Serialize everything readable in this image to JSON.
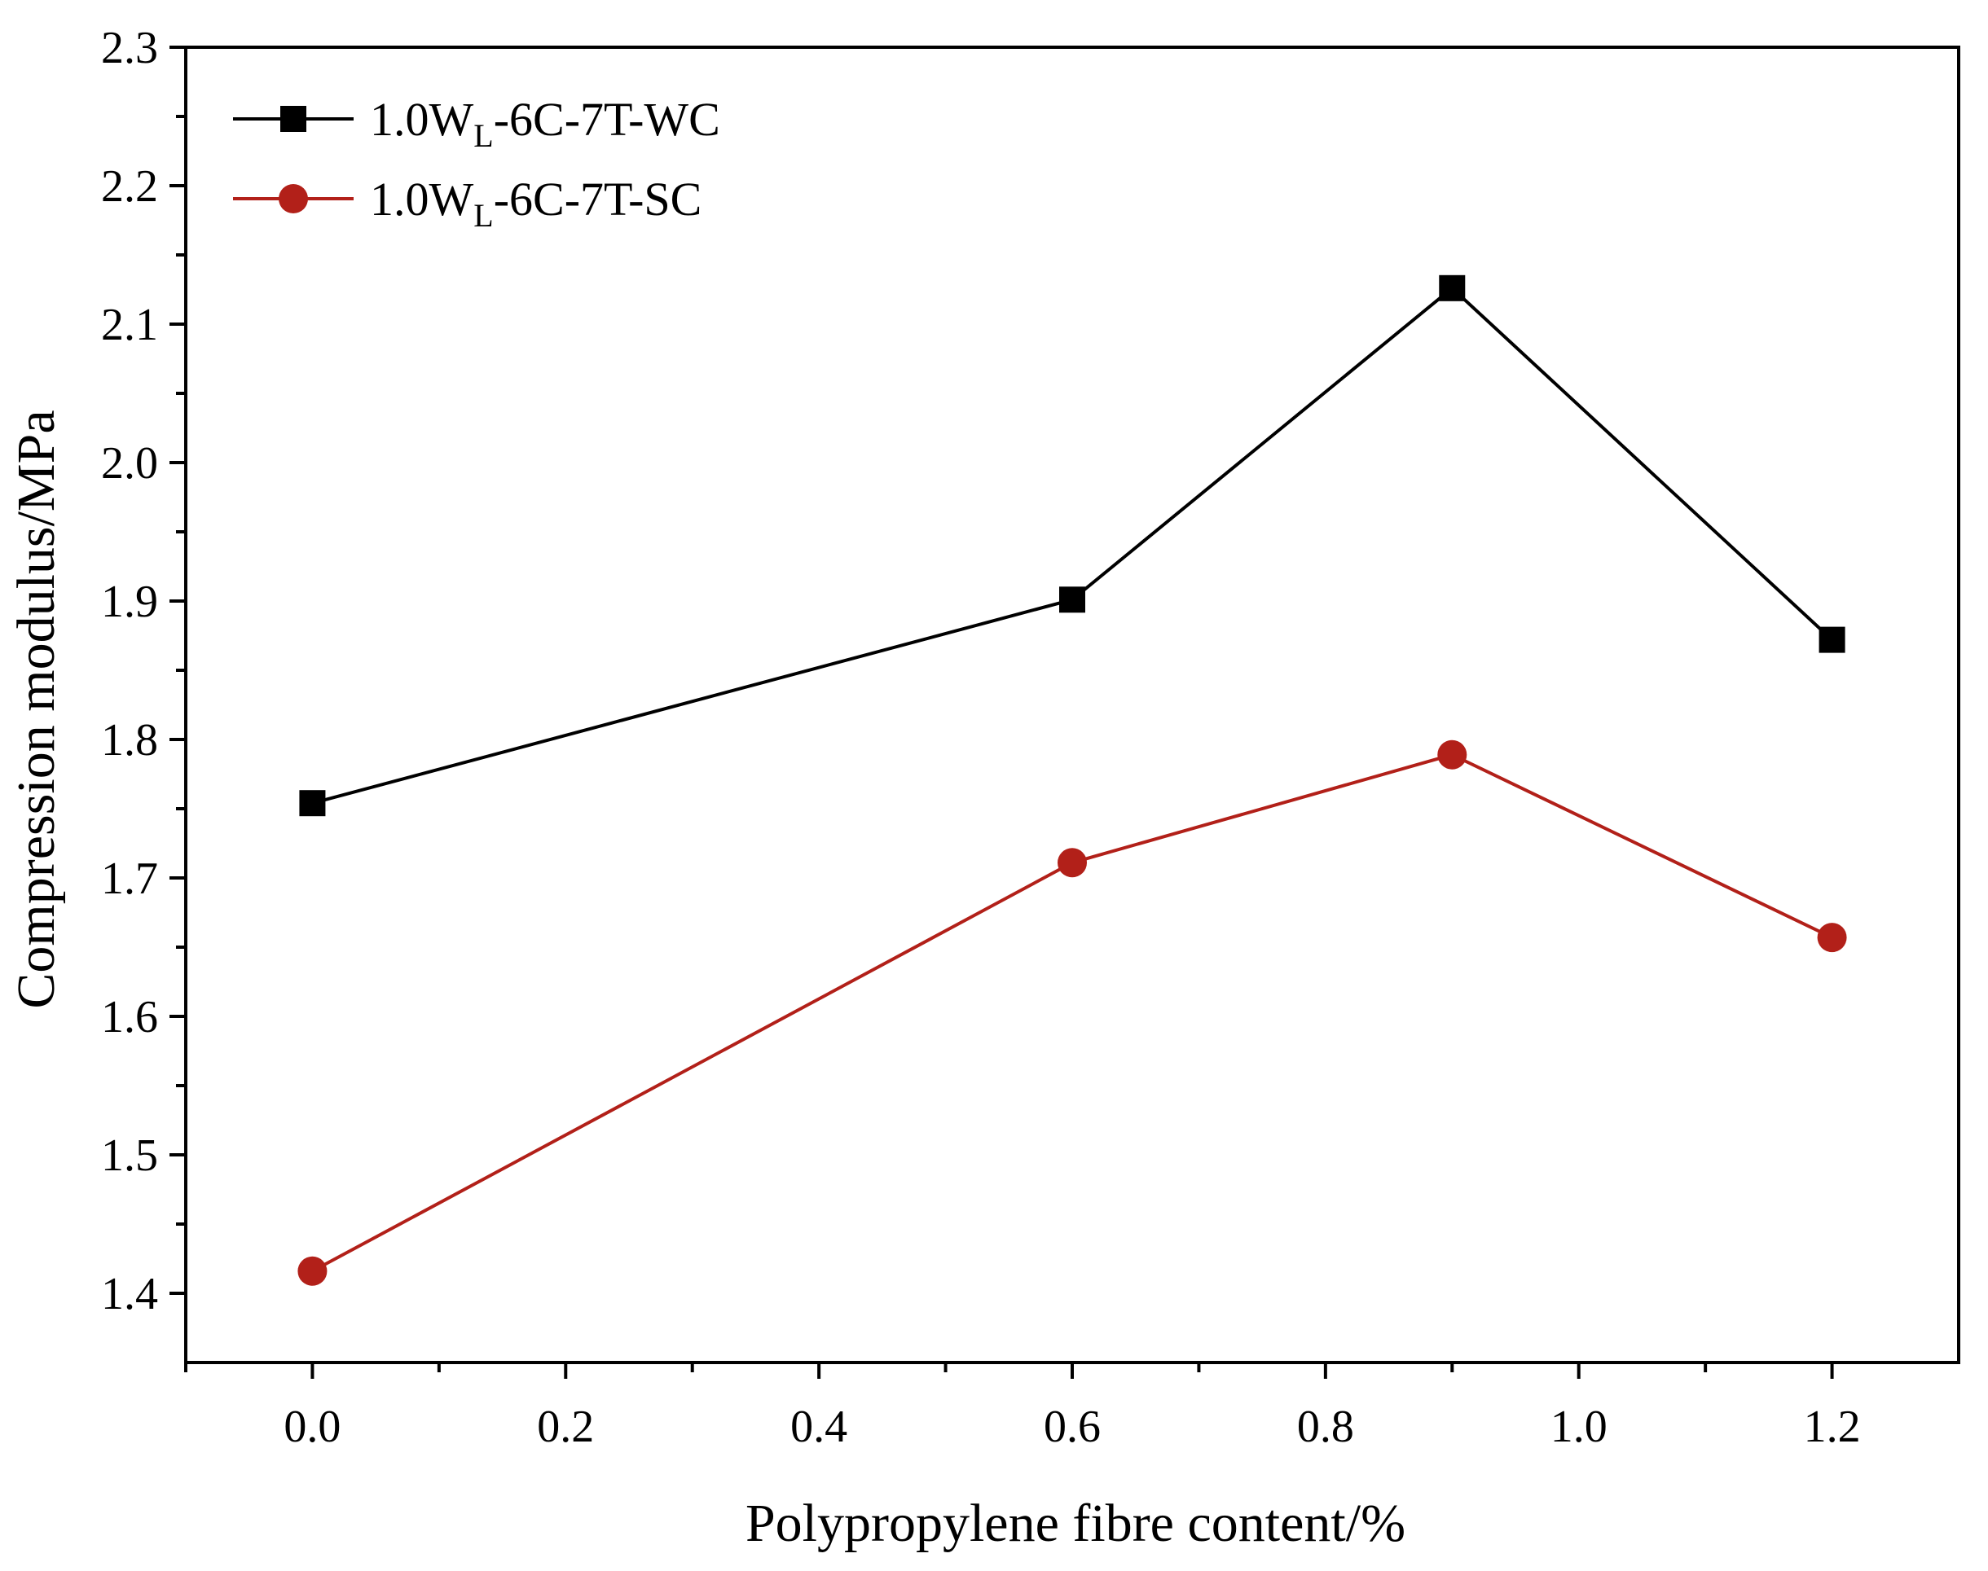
{
  "chart_data": {
    "type": "line",
    "title": "",
    "xlabel": "Polypropylene fibre content/%",
    "ylabel": "Compression modulus/MPa",
    "xlim": [
      -0.1,
      1.3
    ],
    "ylim": [
      1.35,
      2.3
    ],
    "xticks": [
      "0.0",
      "0.2",
      "0.4",
      "0.6",
      "0.8",
      "1.0",
      "1.2"
    ],
    "yticks": [
      "1.4",
      "1.5",
      "1.6",
      "1.7",
      "1.8",
      "1.9",
      "2.0",
      "2.1",
      "2.2",
      "2.3"
    ],
    "x": [
      0.0,
      0.6,
      0.9,
      1.2
    ],
    "series": [
      {
        "name": "1.0WL-6C-7T-WC",
        "label_prefix": "1.0W",
        "label_sub": "L",
        "label_suffix": "-6C-7T-WC",
        "marker": "square",
        "color": "#000000",
        "values": [
          1.754,
          1.901,
          2.126,
          1.872
        ]
      },
      {
        "name": "1.0WL-6C-7T-SC",
        "label_prefix": "1.0W",
        "label_sub": "L",
        "label_suffix": "-6C-7T-SC",
        "marker": "circle",
        "color": "#b22019",
        "values": [
          1.416,
          1.711,
          1.789,
          1.657
        ]
      }
    ],
    "legend_position": "top-left",
    "grid": false
  }
}
